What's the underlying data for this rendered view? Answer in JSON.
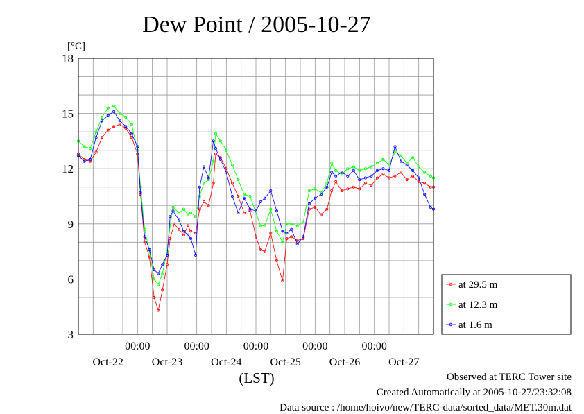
{
  "chart_data": {
    "type": "line",
    "title": "Dew Point / 2005-10-27",
    "ylabel": "[°C]",
    "xlabel": "(LST)",
    "ylim": [
      3,
      18
    ],
    "yticks": [
      3,
      6,
      9,
      12,
      15,
      18
    ],
    "xlim_days": [
      0,
      6
    ],
    "x_ticks": [
      {
        "time": "00:00",
        "day": 1
      },
      {
        "time": "00:00",
        "day": 2
      },
      {
        "time": "00:00",
        "day": 3
      },
      {
        "time": "00:00",
        "day": 4
      },
      {
        "time": "00:00",
        "day": 5
      }
    ],
    "x_day_labels": [
      {
        "label": "Oct-22",
        "day": 0.5
      },
      {
        "label": "Oct-23",
        "day": 1.5
      },
      {
        "label": "Oct-24",
        "day": 2.5
      },
      {
        "label": "Oct-25",
        "day": 3.5
      },
      {
        "label": "Oct-26",
        "day": 4.5
      },
      {
        "label": "Oct-27",
        "day": 5.5
      }
    ],
    "grid": true,
    "legend_position": "bottom-right-outside",
    "series": [
      {
        "name": "at 29.5 m",
        "color": "#ff0000",
        "points": [
          [
            0,
            12.8
          ],
          [
            0.1,
            12.5
          ],
          [
            0.2,
            12.4
          ],
          [
            0.3,
            12.9
          ],
          [
            0.4,
            13.7
          ],
          [
            0.5,
            14.1
          ],
          [
            0.6,
            14.3
          ],
          [
            0.7,
            14.4
          ],
          [
            0.8,
            14.2
          ],
          [
            0.9,
            13.7
          ],
          [
            1.0,
            12.8
          ],
          [
            1.05,
            10.6
          ],
          [
            1.12,
            8.0
          ],
          [
            1.2,
            7.2
          ],
          [
            1.28,
            5.0
          ],
          [
            1.35,
            4.3
          ],
          [
            1.42,
            5.4
          ],
          [
            1.5,
            6.8
          ],
          [
            1.55,
            8.2
          ],
          [
            1.62,
            9.0
          ],
          [
            1.7,
            8.7
          ],
          [
            1.78,
            8.4
          ],
          [
            1.85,
            8.9
          ],
          [
            1.9,
            8.6
          ],
          [
            1.98,
            8.5
          ],
          [
            2.05,
            9.8
          ],
          [
            2.12,
            10.2
          ],
          [
            2.2,
            10.0
          ],
          [
            2.28,
            11.2
          ],
          [
            2.32,
            12.8
          ],
          [
            2.4,
            12.6
          ],
          [
            2.5,
            12.0
          ],
          [
            2.6,
            11.2
          ],
          [
            2.7,
            10.5
          ],
          [
            2.8,
            9.6
          ],
          [
            2.9,
            9.7
          ],
          [
            3.0,
            8.3
          ],
          [
            3.08,
            7.6
          ],
          [
            3.15,
            7.5
          ],
          [
            3.25,
            8.5
          ],
          [
            3.35,
            7.0
          ],
          [
            3.45,
            5.9
          ],
          [
            3.52,
            8.2
          ],
          [
            3.6,
            8.3
          ],
          [
            3.7,
            8.1
          ],
          [
            3.8,
            8.2
          ],
          [
            3.9,
            9.8
          ],
          [
            4.0,
            9.9
          ],
          [
            4.1,
            9.5
          ],
          [
            4.2,
            9.8
          ],
          [
            4.28,
            10.8
          ],
          [
            4.35,
            11.3
          ],
          [
            4.45,
            10.8
          ],
          [
            4.55,
            10.9
          ],
          [
            4.65,
            11.0
          ],
          [
            4.75,
            10.9
          ],
          [
            4.85,
            11.2
          ],
          [
            4.95,
            11.1
          ],
          [
            5.05,
            11.5
          ],
          [
            5.15,
            11.7
          ],
          [
            5.25,
            11.5
          ],
          [
            5.35,
            11.6
          ],
          [
            5.45,
            11.8
          ],
          [
            5.55,
            11.4
          ],
          [
            5.65,
            11.6
          ],
          [
            5.75,
            11.3
          ],
          [
            5.85,
            11.2
          ],
          [
            5.95,
            11.0
          ],
          [
            6.0,
            11.0
          ]
        ]
      },
      {
        "name": "at 12.3 m",
        "color": "#00ff00",
        "points": [
          [
            0,
            13.5
          ],
          [
            0.1,
            13.2
          ],
          [
            0.2,
            13.1
          ],
          [
            0.3,
            14.0
          ],
          [
            0.4,
            14.8
          ],
          [
            0.5,
            15.3
          ],
          [
            0.6,
            15.4
          ],
          [
            0.7,
            15.0
          ],
          [
            0.8,
            14.8
          ],
          [
            0.9,
            14.4
          ],
          [
            1.0,
            13.0
          ],
          [
            1.05,
            11.0
          ],
          [
            1.12,
            8.7
          ],
          [
            1.2,
            7.5
          ],
          [
            1.28,
            6.0
          ],
          [
            1.35,
            5.7
          ],
          [
            1.42,
            6.3
          ],
          [
            1.5,
            7.5
          ],
          [
            1.55,
            8.9
          ],
          [
            1.6,
            9.9
          ],
          [
            1.7,
            9.6
          ],
          [
            1.78,
            9.8
          ],
          [
            1.85,
            9.5
          ],
          [
            1.9,
            9.6
          ],
          [
            1.98,
            9.4
          ],
          [
            2.05,
            10.5
          ],
          [
            2.12,
            11.2
          ],
          [
            2.2,
            11.4
          ],
          [
            2.28,
            12.4
          ],
          [
            2.32,
            13.9
          ],
          [
            2.4,
            13.5
          ],
          [
            2.5,
            13.0
          ],
          [
            2.6,
            12.2
          ],
          [
            2.7,
            11.4
          ],
          [
            2.8,
            10.6
          ],
          [
            2.9,
            10.5
          ],
          [
            3.0,
            9.6
          ],
          [
            3.08,
            8.9
          ],
          [
            3.15,
            8.9
          ],
          [
            3.25,
            9.8
          ],
          [
            3.35,
            8.6
          ],
          [
            3.45,
            8.0
          ],
          [
            3.52,
            9.0
          ],
          [
            3.6,
            9.0
          ],
          [
            3.7,
            8.9
          ],
          [
            3.8,
            9.1
          ],
          [
            3.9,
            10.8
          ],
          [
            4.0,
            10.9
          ],
          [
            4.1,
            10.7
          ],
          [
            4.2,
            11.2
          ],
          [
            4.28,
            12.3
          ],
          [
            4.35,
            11.9
          ],
          [
            4.45,
            11.7
          ],
          [
            4.55,
            12.0
          ],
          [
            4.65,
            12.1
          ],
          [
            4.75,
            11.9
          ],
          [
            4.85,
            12.0
          ],
          [
            4.95,
            12.1
          ],
          [
            5.05,
            12.3
          ],
          [
            5.15,
            12.5
          ],
          [
            5.25,
            12.2
          ],
          [
            5.35,
            12.9
          ],
          [
            5.45,
            12.7
          ],
          [
            5.55,
            12.3
          ],
          [
            5.65,
            12.6
          ],
          [
            5.75,
            12.1
          ],
          [
            5.85,
            11.8
          ],
          [
            5.95,
            11.6
          ],
          [
            6.0,
            11.5
          ]
        ]
      },
      {
        "name": "at 1.6 m",
        "color": "#0000ff",
        "points": [
          [
            0,
            12.7
          ],
          [
            0.1,
            12.4
          ],
          [
            0.2,
            12.5
          ],
          [
            0.3,
            13.7
          ],
          [
            0.4,
            14.6
          ],
          [
            0.5,
            14.9
          ],
          [
            0.6,
            15.1
          ],
          [
            0.7,
            14.6
          ],
          [
            0.8,
            14.3
          ],
          [
            0.9,
            13.9
          ],
          [
            1.0,
            13.2
          ],
          [
            1.05,
            10.7
          ],
          [
            1.12,
            8.3
          ],
          [
            1.2,
            7.6
          ],
          [
            1.28,
            6.5
          ],
          [
            1.35,
            6.3
          ],
          [
            1.42,
            6.8
          ],
          [
            1.5,
            7.3
          ],
          [
            1.55,
            9.4
          ],
          [
            1.6,
            9.7
          ],
          [
            1.7,
            9.2
          ],
          [
            1.78,
            8.6
          ],
          [
            1.85,
            8.4
          ],
          [
            1.9,
            8.2
          ],
          [
            1.98,
            7.3
          ],
          [
            2.05,
            11.0
          ],
          [
            2.12,
            12.1
          ],
          [
            2.2,
            11.5
          ],
          [
            2.28,
            13.5
          ],
          [
            2.32,
            13.1
          ],
          [
            2.4,
            12.5
          ],
          [
            2.5,
            11.8
          ],
          [
            2.6,
            10.5
          ],
          [
            2.7,
            9.6
          ],
          [
            2.8,
            10.4
          ],
          [
            2.9,
            9.8
          ],
          [
            3.0,
            9.7
          ],
          [
            3.08,
            10.2
          ],
          [
            3.15,
            10.4
          ],
          [
            3.25,
            10.8
          ],
          [
            3.35,
            9.7
          ],
          [
            3.45,
            8.6
          ],
          [
            3.52,
            8.5
          ],
          [
            3.6,
            8.7
          ],
          [
            3.7,
            7.9
          ],
          [
            3.8,
            8.3
          ],
          [
            3.9,
            10.1
          ],
          [
            4.0,
            10.4
          ],
          [
            4.1,
            10.6
          ],
          [
            4.2,
            11.0
          ],
          [
            4.28,
            11.8
          ],
          [
            4.35,
            11.6
          ],
          [
            4.45,
            11.8
          ],
          [
            4.55,
            11.6
          ],
          [
            4.65,
            11.9
          ],
          [
            4.75,
            11.4
          ],
          [
            4.85,
            11.5
          ],
          [
            4.95,
            11.6
          ],
          [
            5.05,
            11.9
          ],
          [
            5.15,
            12.0
          ],
          [
            5.25,
            11.9
          ],
          [
            5.35,
            13.2
          ],
          [
            5.45,
            12.4
          ],
          [
            5.55,
            12.2
          ],
          [
            5.65,
            11.9
          ],
          [
            5.75,
            11.5
          ],
          [
            5.85,
            10.6
          ],
          [
            5.95,
            9.9
          ],
          [
            6.0,
            9.8
          ]
        ]
      }
    ]
  },
  "footer": {
    "site": "Observed at TERC Tower site",
    "created": "Created Automatically at 2005-10-27/23:32:08",
    "source": "Data source : /home/hoivo/new/TERC-data/sorted_data/MET.30m.dat"
  }
}
